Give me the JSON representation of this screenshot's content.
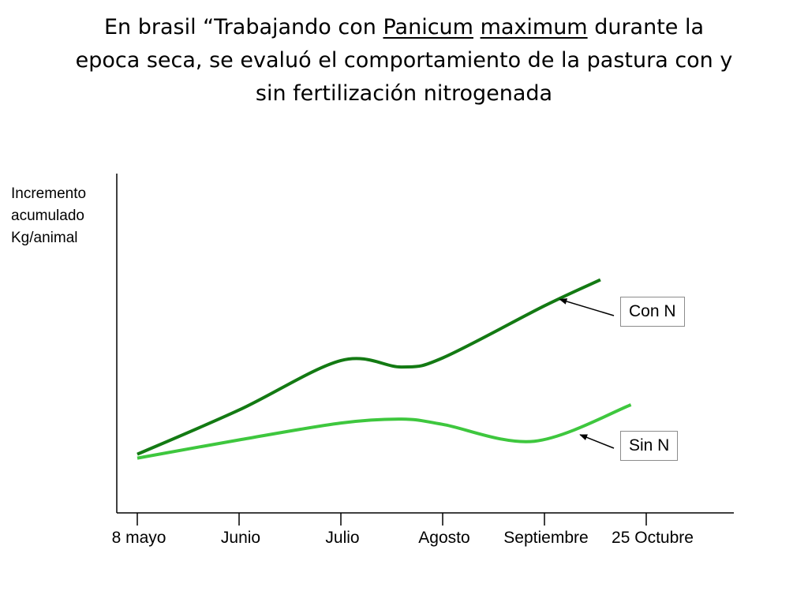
{
  "title": {
    "part1": "En brasil “Trabajando con ",
    "word1": "Panicum",
    "space": " ",
    "word2": "maximum",
    "part2": " durante la",
    "line2": "epoca seca, se evaluó el comportamiento de la pastura con y",
    "line3": "sin fertilización nitrogenada"
  },
  "chart_data": {
    "type": "line",
    "ylabel": [
      "Incremento",
      "acumulado",
      "Kg/animal"
    ],
    "xlabel": "",
    "categories": [
      "8 mayo",
      "Junio",
      "Julio",
      "Agosto",
      "Septiembre",
      "25 Octubre"
    ],
    "x_range": [
      -0.2,
      5.9
    ],
    "ylim": [
      0,
      10
    ],
    "grid": false,
    "series": [
      {
        "name": "Con N",
        "color": "#137a13",
        "x": [
          0,
          1,
          2,
          2.6,
          3,
          4,
          4.55
        ],
        "y": [
          1.1,
          2.8,
          4.7,
          4.45,
          4.8,
          6.8,
          7.8
        ]
      },
      {
        "name": "Sin N",
        "color": "#3ec73e",
        "x": [
          0,
          1,
          2,
          2.6,
          3,
          3.9,
          4.85
        ],
        "y": [
          0.95,
          1.65,
          2.3,
          2.45,
          2.25,
          1.6,
          3.0
        ]
      }
    ],
    "annotations": [
      {
        "text": "Con N",
        "series": 0,
        "point": [
          4.15,
          7.05
        ]
      },
      {
        "text": "Sin N",
        "series": 1,
        "point": [
          4.35,
          1.85
        ]
      }
    ]
  }
}
